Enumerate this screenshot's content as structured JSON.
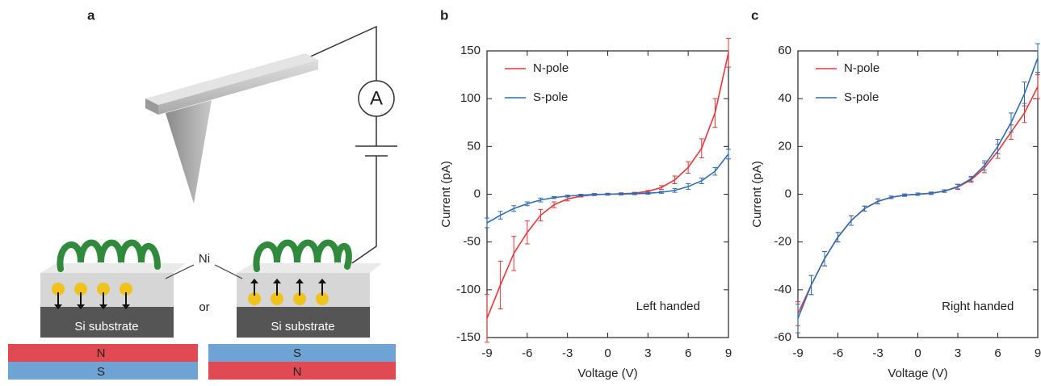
{
  "diagram": {
    "panel_label": "a",
    "ammeter": "A",
    "ni_label": "Ni",
    "or_label": "or",
    "left_substrate": "Si substrate",
    "right_substrate": "Si substrate",
    "left_magnet_top": "N",
    "left_magnet_bottom": "S",
    "right_magnet_top": "S",
    "right_magnet_bottom": "N"
  },
  "chart_data": [
    {
      "type": "line",
      "panel_label": "b",
      "xlabel": "Voltage (V)",
      "ylabel": "Current (pA)",
      "annotation": "Left handed",
      "legend": "upper left",
      "x": [
        -9,
        -8,
        -7,
        -6,
        -5,
        -4,
        -3,
        -2,
        -1,
        0,
        1,
        2,
        3,
        4,
        5,
        6,
        7,
        8,
        9
      ],
      "series": [
        {
          "name": "N-pole",
          "color": "#e8363b",
          "values": [
            -130,
            -95,
            -62,
            -40,
            -22,
            -11,
            -5,
            -2,
            -0.5,
            0,
            0.5,
            1,
            3,
            7,
            15,
            28,
            48,
            85,
            148
          ],
          "errors": [
            25,
            25,
            18,
            12,
            6,
            3,
            2,
            1,
            1,
            1,
            1,
            1,
            1,
            2,
            4,
            6,
            10,
            15,
            15
          ]
        },
        {
          "name": "S-pole",
          "color": "#2e6db5",
          "values": [
            -30,
            -22,
            -15,
            -10,
            -6,
            -3.5,
            -2,
            -1,
            -0.3,
            0,
            0.3,
            0.5,
            1,
            2,
            4,
            8,
            14,
            24,
            42
          ],
          "errors": [
            5,
            4,
            3,
            2,
            2,
            1,
            1,
            1,
            1,
            1,
            1,
            1,
            1,
            1,
            2,
            3,
            3,
            4,
            5
          ]
        }
      ],
      "xlim": [
        -9,
        9
      ],
      "ylim": [
        -150,
        150
      ],
      "xticks": [
        -9,
        -6,
        -3,
        0,
        3,
        6,
        9
      ],
      "yticks": [
        -150,
        -100,
        -50,
        0,
        50,
        100,
        150
      ]
    },
    {
      "type": "line",
      "panel_label": "c",
      "xlabel": "Voltage (V)",
      "ylabel": "Current (pA)",
      "annotation": "Right handed",
      "legend": "upper left",
      "x": [
        -9,
        -8,
        -7,
        -6,
        -5,
        -4,
        -3,
        -2,
        -1,
        0,
        1,
        2,
        3,
        4,
        5,
        6,
        7,
        8,
        9
      ],
      "series": [
        {
          "name": "N-pole",
          "color": "#e8363b",
          "values": [
            -50,
            -38,
            -27,
            -18,
            -11,
            -6,
            -3,
            -1.3,
            -0.4,
            0,
            0.4,
            1.3,
            3,
            6,
            11,
            18,
            26,
            34,
            45
          ],
          "errors": [
            5,
            4,
            3,
            2,
            2,
            1,
            1,
            0.5,
            0.5,
            0.5,
            0.5,
            0.5,
            1,
            1,
            2,
            3,
            3,
            4,
            5
          ]
        },
        {
          "name": "S-pole",
          "color": "#2e6db5",
          "values": [
            -52,
            -38,
            -27,
            -18,
            -11,
            -6,
            -3,
            -1.3,
            -0.4,
            0,
            0.4,
            1.3,
            3.2,
            6.5,
            12,
            20,
            30,
            42,
            57
          ],
          "errors": [
            6,
            4,
            3,
            2,
            2,
            1,
            1,
            0.5,
            0.5,
            0.5,
            0.5,
            0.5,
            1,
            1,
            2,
            3,
            4,
            5,
            6
          ]
        }
      ],
      "xlim": [
        -9,
        9
      ],
      "ylim": [
        -60,
        60
      ],
      "xticks": [
        -9,
        -6,
        -3,
        0,
        3,
        6,
        9
      ],
      "yticks": [
        -60,
        -40,
        -20,
        0,
        20,
        40,
        60
      ]
    }
  ]
}
